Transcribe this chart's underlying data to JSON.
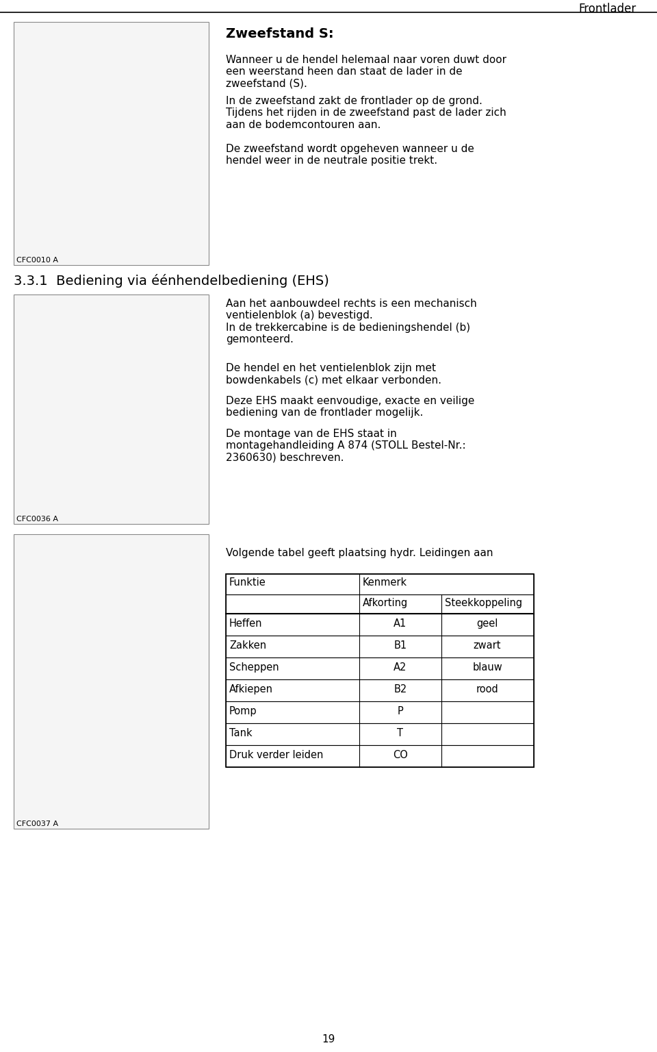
{
  "page_bg": "#ffffff",
  "header_text": "Frontlader",
  "header_fontsize": 12,
  "section1_title": "Zweefstand S:",
  "section1_title_fontsize": 14,
  "section1_para1": "Wanneer u de hendel helemaal naar voren duwt door\neen weerstand heen dan staat de lader in de\nzweefstand (S).",
  "section1_para2": "In de zweefstand zakt de frontlader op de grond.\nTijdens het rijden in de zweefstand past de lader zich\naan de bodemcontouren aan.",
  "section1_para3": "De zweefstand wordt opgeheven wanneer u de\nhendel weer in de neutrale positie trekt.",
  "section1_fontsize": 11,
  "image1_label": "CFC0010 A",
  "image2_label": "CFC0036 A",
  "image3_label": "CFC0037 A",
  "section2_heading": "3.3.1  Bediening via éénhendelbediening (EHS)",
  "section2_heading_fontsize": 14,
  "section2_para1": "Aan het aanbouwdeel rechts is een mechanisch\nventielenblok (a) bevestigd.\nIn de trekkercabine is de bedieningshendel (b)\ngemonteerd.",
  "section2_para2": "De hendel en het ventielenblok zijn met\nbowdenkabels (c) met elkaar verbonden.",
  "section2_para3": "Deze EHS maakt eenvoudige, exacte en veilige\nbediening van de frontlader mogelijk.",
  "section2_para4": "De montage van de EHS staat in\nmontagehandleiding A 874 (STOLL Bestel-Nr.:\n2360630) beschreven.",
  "section2_fontsize": 11,
  "section3_intro": "Volgende tabel geeft plaatsing hydr. Leidingen aan",
  "section3_fontsize": 11,
  "table_col1_header": "Funktie",
  "table_col2_header": "Kenmerk",
  "table_subrow": [
    "",
    "Afkorting",
    "Steekkoppeling"
  ],
  "table_rows": [
    [
      "Heffen",
      "A1",
      "geel"
    ],
    [
      "Zakken",
      "B1",
      "zwart"
    ],
    [
      "Scheppen",
      "A2",
      "blauw"
    ],
    [
      "Afkiepen",
      "B2",
      "rood"
    ],
    [
      "Pomp",
      "P",
      ""
    ],
    [
      "Tank",
      "T",
      ""
    ],
    [
      "Druk verder leiden",
      "CO",
      ""
    ]
  ],
  "table_fontsize": 10.5,
  "footer_text": "19",
  "footer_fontsize": 11
}
